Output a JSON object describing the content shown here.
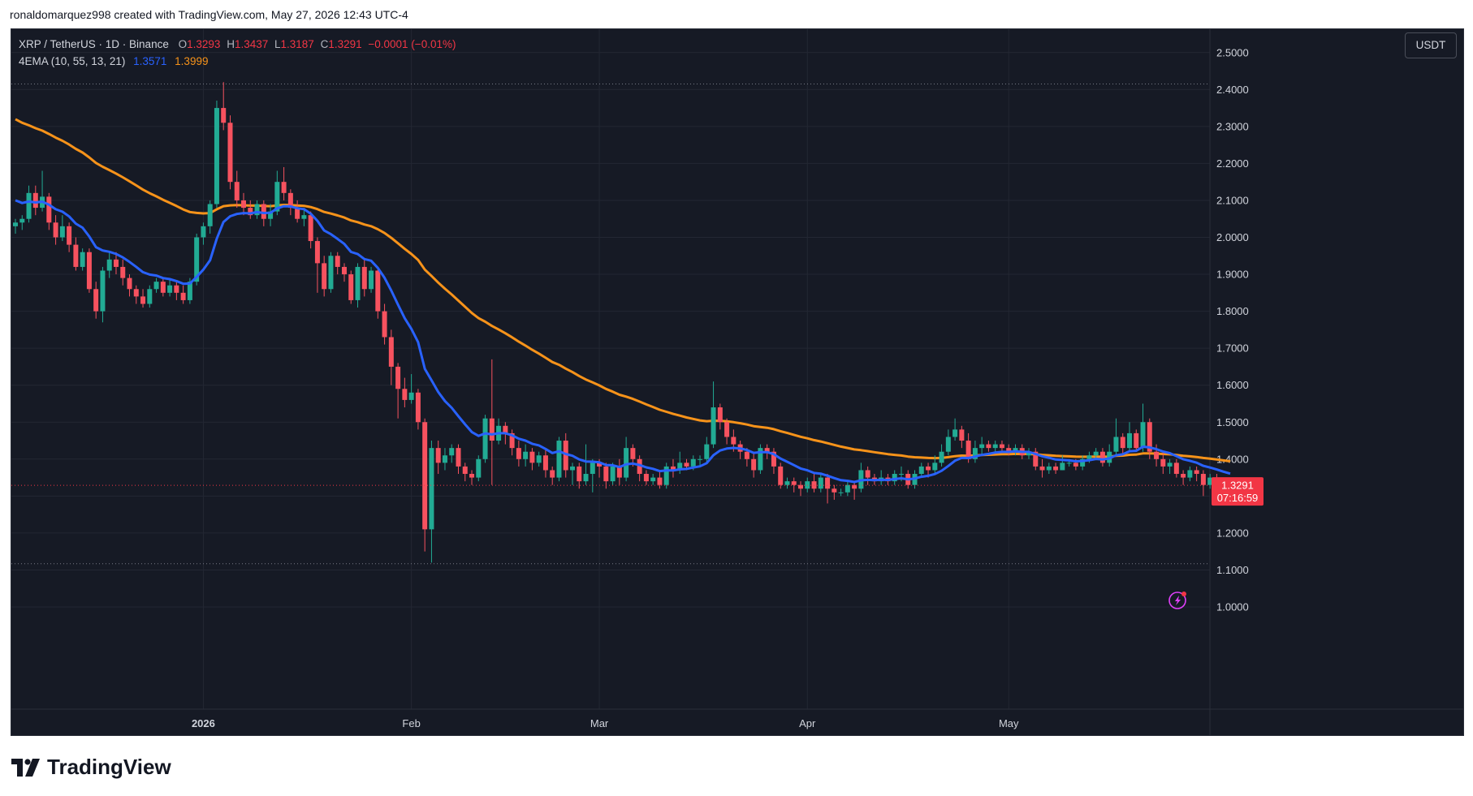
{
  "header": {
    "caption": "ronaldomarquez998 created with TradingView.com, May 27, 2026 12:43 UTC-4"
  },
  "legend": {
    "symbol": "XRP / TetherUS · 1D · Binance",
    "o_label": "O",
    "o": "1.3293",
    "h_label": "H",
    "h": "1.3437",
    "l_label": "L",
    "l": "1.3187",
    "c_label": "C",
    "c": "1.3291",
    "change": "−0.0001 (−0.01%)",
    "indicator": "4EMA (10, 55, 13, 21)",
    "ema_fast": "1.3571",
    "ema_slow": "1.3999"
  },
  "currency": "USDT",
  "price_tag": {
    "price": "1.3291",
    "countdown": "07:16:59"
  },
  "branding": "TradingView",
  "colors": {
    "up": "#22ab94",
    "down": "#f7525f",
    "ema_fast": "#2962ff",
    "ema_slow": "#f7931a",
    "background": "#161a25",
    "grid": "#232733",
    "axis_text": "#d1d4dc"
  },
  "icons": {
    "logo": "tradingview-logo-icon",
    "flash": "lightning-icon"
  },
  "chart_data": {
    "type": "candlestick",
    "title": "XRP / TetherUS · 1D · Binance",
    "ylim": [
      0.95,
      2.5
    ],
    "y_ticks": [
      "1.0000",
      "1.1000",
      "1.2000",
      "1.3000",
      "1.4000",
      "1.5000",
      "1.6000",
      "1.7000",
      "1.8000",
      "1.9000",
      "2.0000",
      "2.1000",
      "2.2000",
      "2.3000",
      "2.4000",
      "2.5000"
    ],
    "x_labels": [
      {
        "label": "2026",
        "day": 28,
        "bold": true
      },
      {
        "label": "Feb",
        "day": 59
      },
      {
        "label": "Mar",
        "day": 87
      },
      {
        "label": "Apr",
        "day": 118
      },
      {
        "label": "May",
        "day": 148
      }
    ],
    "start_date": "2025-12-04",
    "dashed_levels": [
      2.415,
      1.117
    ],
    "last_price": 1.3291,
    "candles": [
      [
        2.03,
        2.04,
        2.01,
        2.05
      ],
      [
        2.04,
        2.05,
        2.02,
        2.06
      ],
      [
        2.05,
        2.12,
        2.04,
        2.14
      ],
      [
        2.12,
        2.08,
        2.06,
        2.14
      ],
      [
        2.08,
        2.11,
        2.07,
        2.18
      ],
      [
        2.11,
        2.04,
        2.02,
        2.12
      ],
      [
        2.04,
        2.0,
        1.98,
        2.06
      ],
      [
        2.0,
        2.03,
        1.99,
        2.06
      ],
      [
        2.03,
        1.98,
        1.96,
        2.04
      ],
      [
        1.98,
        1.92,
        1.91,
        2.0
      ],
      [
        1.92,
        1.96,
        1.91,
        1.97
      ],
      [
        1.96,
        1.86,
        1.85,
        1.97
      ],
      [
        1.86,
        1.8,
        1.78,
        1.88
      ],
      [
        1.8,
        1.91,
        1.77,
        1.92
      ],
      [
        1.91,
        1.94,
        1.89,
        1.96
      ],
      [
        1.94,
        1.92,
        1.9,
        1.96
      ],
      [
        1.92,
        1.89,
        1.87,
        1.94
      ],
      [
        1.89,
        1.86,
        1.84,
        1.9
      ],
      [
        1.86,
        1.84,
        1.82,
        1.87
      ],
      [
        1.84,
        1.82,
        1.81,
        1.86
      ],
      [
        1.82,
        1.86,
        1.81,
        1.87
      ],
      [
        1.86,
        1.88,
        1.85,
        1.89
      ],
      [
        1.88,
        1.85,
        1.84,
        1.89
      ],
      [
        1.85,
        1.87,
        1.84,
        1.89
      ],
      [
        1.87,
        1.85,
        1.83,
        1.88
      ],
      [
        1.85,
        1.83,
        1.82,
        1.87
      ],
      [
        1.83,
        1.88,
        1.82,
        1.89
      ],
      [
        1.88,
        2.0,
        1.87,
        2.01
      ],
      [
        2.0,
        2.03,
        1.98,
        2.04
      ],
      [
        2.03,
        2.09,
        2.01,
        2.1
      ],
      [
        2.09,
        2.35,
        2.08,
        2.37
      ],
      [
        2.35,
        2.31,
        2.29,
        2.42
      ],
      [
        2.31,
        2.15,
        2.13,
        2.33
      ],
      [
        2.15,
        2.1,
        2.08,
        2.18
      ],
      [
        2.1,
        2.08,
        2.06,
        2.12
      ],
      [
        2.08,
        2.06,
        2.05,
        2.1
      ],
      [
        2.06,
        2.09,
        2.05,
        2.1
      ],
      [
        2.09,
        2.05,
        2.03,
        2.1
      ],
      [
        2.05,
        2.07,
        2.03,
        2.09
      ],
      [
        2.07,
        2.15,
        2.06,
        2.18
      ],
      [
        2.15,
        2.12,
        2.1,
        2.19
      ],
      [
        2.12,
        2.08,
        2.06,
        2.13
      ],
      [
        2.08,
        2.05,
        2.04,
        2.1
      ],
      [
        2.05,
        2.06,
        2.03,
        2.08
      ],
      [
        2.06,
        1.99,
        1.97,
        2.07
      ],
      [
        1.99,
        1.93,
        1.85,
        2.0
      ],
      [
        1.93,
        1.86,
        1.84,
        1.95
      ],
      [
        1.86,
        1.95,
        1.85,
        1.96
      ],
      [
        1.95,
        1.92,
        1.9,
        1.96
      ],
      [
        1.92,
        1.9,
        1.88,
        1.93
      ],
      [
        1.9,
        1.83,
        1.82,
        1.91
      ],
      [
        1.83,
        1.92,
        1.81,
        1.93
      ],
      [
        1.92,
        1.86,
        1.84,
        1.94
      ],
      [
        1.86,
        1.91,
        1.85,
        1.92
      ],
      [
        1.91,
        1.8,
        1.78,
        1.92
      ],
      [
        1.8,
        1.73,
        1.71,
        1.82
      ],
      [
        1.73,
        1.65,
        1.6,
        1.75
      ],
      [
        1.65,
        1.59,
        1.51,
        1.66
      ],
      [
        1.59,
        1.56,
        1.54,
        1.62
      ],
      [
        1.56,
        1.58,
        1.55,
        1.63
      ],
      [
        1.58,
        1.5,
        1.48,
        1.59
      ],
      [
        1.5,
        1.21,
        1.15,
        1.51
      ],
      [
        1.21,
        1.43,
        1.12,
        1.45
      ],
      [
        1.43,
        1.39,
        1.36,
        1.45
      ],
      [
        1.39,
        1.41,
        1.37,
        1.43
      ],
      [
        1.41,
        1.43,
        1.39,
        1.44
      ],
      [
        1.43,
        1.38,
        1.36,
        1.44
      ],
      [
        1.38,
        1.36,
        1.34,
        1.39
      ],
      [
        1.36,
        1.35,
        1.33,
        1.37
      ],
      [
        1.35,
        1.4,
        1.34,
        1.41
      ],
      [
        1.4,
        1.51,
        1.39,
        1.52
      ],
      [
        1.51,
        1.45,
        1.33,
        1.67
      ],
      [
        1.45,
        1.49,
        1.44,
        1.51
      ],
      [
        1.49,
        1.47,
        1.44,
        1.5
      ],
      [
        1.47,
        1.43,
        1.41,
        1.48
      ],
      [
        1.43,
        1.4,
        1.38,
        1.45
      ],
      [
        1.4,
        1.42,
        1.38,
        1.44
      ],
      [
        1.42,
        1.39,
        1.37,
        1.43
      ],
      [
        1.39,
        1.41,
        1.38,
        1.42
      ],
      [
        1.41,
        1.37,
        1.35,
        1.43
      ],
      [
        1.37,
        1.35,
        1.33,
        1.38
      ],
      [
        1.35,
        1.45,
        1.34,
        1.46
      ],
      [
        1.45,
        1.37,
        1.35,
        1.47
      ],
      [
        1.37,
        1.38,
        1.33,
        1.39
      ],
      [
        1.38,
        1.34,
        1.32,
        1.39
      ],
      [
        1.34,
        1.36,
        1.33,
        1.44
      ],
      [
        1.36,
        1.39,
        1.31,
        1.4
      ],
      [
        1.39,
        1.38,
        1.35,
        1.4
      ],
      [
        1.38,
        1.34,
        1.32,
        1.39
      ],
      [
        1.34,
        1.38,
        1.33,
        1.39
      ],
      [
        1.38,
        1.35,
        1.33,
        1.4
      ],
      [
        1.35,
        1.43,
        1.34,
        1.46
      ],
      [
        1.43,
        1.4,
        1.38,
        1.44
      ],
      [
        1.4,
        1.36,
        1.34,
        1.41
      ],
      [
        1.36,
        1.34,
        1.33,
        1.37
      ],
      [
        1.34,
        1.35,
        1.33,
        1.36
      ],
      [
        1.35,
        1.33,
        1.32,
        1.37
      ],
      [
        1.33,
        1.38,
        1.32,
        1.39
      ],
      [
        1.38,
        1.37,
        1.35,
        1.4
      ],
      [
        1.37,
        1.39,
        1.36,
        1.42
      ],
      [
        1.39,
        1.38,
        1.37,
        1.4
      ],
      [
        1.38,
        1.4,
        1.37,
        1.41
      ],
      [
        1.4,
        1.4,
        1.38,
        1.41
      ],
      [
        1.4,
        1.44,
        1.39,
        1.46
      ],
      [
        1.44,
        1.54,
        1.43,
        1.61
      ],
      [
        1.54,
        1.5,
        1.48,
        1.55
      ],
      [
        1.5,
        1.46,
        1.44,
        1.51
      ],
      [
        1.46,
        1.44,
        1.42,
        1.48
      ],
      [
        1.44,
        1.42,
        1.4,
        1.45
      ],
      [
        1.42,
        1.4,
        1.38,
        1.43
      ],
      [
        1.4,
        1.37,
        1.35,
        1.42
      ],
      [
        1.37,
        1.43,
        1.36,
        1.44
      ],
      [
        1.43,
        1.42,
        1.4,
        1.44
      ],
      [
        1.42,
        1.38,
        1.36,
        1.43
      ],
      [
        1.38,
        1.33,
        1.32,
        1.39
      ],
      [
        1.33,
        1.34,
        1.32,
        1.35
      ],
      [
        1.34,
        1.33,
        1.31,
        1.35
      ],
      [
        1.33,
        1.32,
        1.3,
        1.34
      ],
      [
        1.32,
        1.34,
        1.31,
        1.35
      ],
      [
        1.34,
        1.32,
        1.31,
        1.36
      ],
      [
        1.32,
        1.35,
        1.31,
        1.36
      ],
      [
        1.35,
        1.32,
        1.28,
        1.36
      ],
      [
        1.32,
        1.31,
        1.29,
        1.33
      ],
      [
        1.31,
        1.31,
        1.3,
        1.32
      ],
      [
        1.31,
        1.33,
        1.3,
        1.34
      ],
      [
        1.33,
        1.32,
        1.29,
        1.34
      ],
      [
        1.32,
        1.37,
        1.31,
        1.39
      ],
      [
        1.37,
        1.35,
        1.33,
        1.38
      ],
      [
        1.35,
        1.34,
        1.33,
        1.36
      ],
      [
        1.34,
        1.35,
        1.33,
        1.37
      ],
      [
        1.35,
        1.34,
        1.33,
        1.36
      ],
      [
        1.34,
        1.36,
        1.33,
        1.37
      ],
      [
        1.36,
        1.36,
        1.34,
        1.38
      ],
      [
        1.36,
        1.33,
        1.32,
        1.37
      ],
      [
        1.33,
        1.36,
        1.32,
        1.37
      ],
      [
        1.36,
        1.38,
        1.35,
        1.39
      ],
      [
        1.38,
        1.37,
        1.35,
        1.39
      ],
      [
        1.37,
        1.39,
        1.36,
        1.41
      ],
      [
        1.39,
        1.42,
        1.38,
        1.44
      ],
      [
        1.42,
        1.46,
        1.41,
        1.48
      ],
      [
        1.46,
        1.48,
        1.45,
        1.51
      ],
      [
        1.48,
        1.45,
        1.43,
        1.49
      ],
      [
        1.45,
        1.4,
        1.39,
        1.47
      ],
      [
        1.4,
        1.43,
        1.39,
        1.45
      ],
      [
        1.43,
        1.44,
        1.41,
        1.46
      ],
      [
        1.44,
        1.43,
        1.42,
        1.45
      ],
      [
        1.43,
        1.44,
        1.42,
        1.45
      ],
      [
        1.44,
        1.43,
        1.42,
        1.45
      ],
      [
        1.43,
        1.42,
        1.41,
        1.44
      ],
      [
        1.42,
        1.43,
        1.41,
        1.44
      ],
      [
        1.43,
        1.41,
        1.4,
        1.44
      ],
      [
        1.41,
        1.42,
        1.4,
        1.43
      ],
      [
        1.42,
        1.38,
        1.37,
        1.43
      ],
      [
        1.38,
        1.37,
        1.35,
        1.4
      ],
      [
        1.37,
        1.38,
        1.36,
        1.39
      ],
      [
        1.38,
        1.37,
        1.36,
        1.39
      ],
      [
        1.37,
        1.39,
        1.37,
        1.41
      ],
      [
        1.39,
        1.39,
        1.38,
        1.4
      ],
      [
        1.39,
        1.38,
        1.37,
        1.4
      ],
      [
        1.38,
        1.4,
        1.37,
        1.41
      ],
      [
        1.4,
        1.41,
        1.39,
        1.42
      ],
      [
        1.41,
        1.42,
        1.4,
        1.43
      ],
      [
        1.42,
        1.39,
        1.38,
        1.43
      ],
      [
        1.39,
        1.42,
        1.38,
        1.44
      ],
      [
        1.42,
        1.46,
        1.41,
        1.51
      ],
      [
        1.46,
        1.43,
        1.41,
        1.47
      ],
      [
        1.43,
        1.47,
        1.42,
        1.5
      ],
      [
        1.47,
        1.43,
        1.42,
        1.48
      ],
      [
        1.43,
        1.5,
        1.42,
        1.55
      ],
      [
        1.5,
        1.42,
        1.4,
        1.51
      ],
      [
        1.42,
        1.4,
        1.38,
        1.44
      ],
      [
        1.4,
        1.38,
        1.36,
        1.42
      ],
      [
        1.38,
        1.39,
        1.36,
        1.4
      ],
      [
        1.39,
        1.36,
        1.35,
        1.4
      ],
      [
        1.36,
        1.35,
        1.33,
        1.37
      ],
      [
        1.35,
        1.37,
        1.34,
        1.38
      ],
      [
        1.37,
        1.36,
        1.34,
        1.38
      ],
      [
        1.36,
        1.33,
        1.3,
        1.37
      ],
      [
        1.33,
        1.35,
        1.32,
        1.36
      ],
      [
        1.35,
        1.34,
        1.33,
        1.36
      ],
      [
        1.34,
        1.33,
        1.32,
        1.35
      ],
      [
        1.3293,
        1.3291,
        1.3187,
        1.3437
      ]
    ]
  }
}
